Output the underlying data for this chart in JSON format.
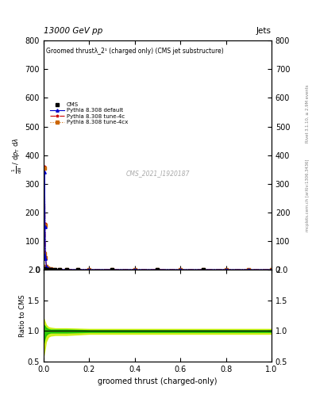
{
  "title_top": "13000 GeV pp",
  "title_right": "Jets",
  "plot_title": "Groomed thrustλ_2¹ (charged only) (CMS jet substructure)",
  "xlabel": "groomed thrust (charged-only)",
  "ylabel_lines": [
    "mathrm d²N",
    "mathrm d p₁ mathrm d λ"
  ],
  "ylabel_ratio": "Ratio to CMS",
  "watermark": "CMS_2021_I1920187",
  "right_label_top": "Rivet 3.1.10, ≥ 2.9M events",
  "right_label_bottom": "mcplots.cern.ch [arXiv:1306.3436]",
  "xlim": [
    0,
    1
  ],
  "ylim_main": [
    0,
    800
  ],
  "ylim_ratio": [
    0.5,
    2.0
  ],
  "yticks_main": [
    0,
    100,
    200,
    300,
    400,
    500,
    600,
    700,
    800
  ],
  "yticks_ratio": [
    0.5,
    1.0,
    1.5,
    2.0
  ],
  "legend_entries": [
    "CMS",
    "Pythia 8.308 default",
    "Pythia 8.308 tune-4c",
    "Pythia 8.308 tune-4cx"
  ],
  "cms_color": "black",
  "line1_color": "#0000cc",
  "line2_color": "#cc0000",
  "line3_color": "#cc6600",
  "background_color": "#ffffff",
  "ratio_band1_color": "#00bb00",
  "ratio_band2_color": "#ccee00",
  "pythia_x": [
    0.0,
    0.002,
    0.004,
    0.006,
    0.008,
    0.012,
    0.016,
    0.02,
    0.03,
    0.05,
    0.07,
    0.1,
    0.15,
    0.2,
    0.3,
    0.4,
    0.5,
    0.6,
    0.7,
    0.8,
    0.9,
    1.0
  ],
  "p1_y": [
    0,
    50,
    340,
    150,
    40,
    12,
    5,
    3,
    2,
    1,
    0.5,
    0.3,
    0.2,
    0.15,
    0.1,
    0.08,
    0.05,
    0.03,
    0.03,
    0.02,
    0.01,
    0.0
  ],
  "p2_y": [
    0,
    60,
    360,
    160,
    45,
    13,
    6,
    3,
    2,
    1,
    0.5,
    0.3,
    0.2,
    0.15,
    0.1,
    0.08,
    0.05,
    0.03,
    0.03,
    0.02,
    0.01,
    0.0
  ],
  "p3_y": [
    0,
    55,
    355,
    155,
    42,
    12,
    5,
    3,
    2,
    1,
    0.5,
    0.3,
    0.2,
    0.15,
    0.1,
    0.08,
    0.05,
    0.03,
    0.03,
    0.02,
    0.01,
    0.0
  ],
  "cms_x": [
    0.004,
    0.012,
    0.02,
    0.03,
    0.05,
    0.07,
    0.1,
    0.15,
    0.3,
    0.5,
    0.7
  ],
  "cms_y": [
    2.0,
    1.5,
    1.0,
    0.8,
    0.5,
    0.3,
    0.2,
    0.1,
    0.1,
    0.05,
    0.03
  ],
  "ratio_x": [
    0.0,
    0.005,
    0.01,
    0.02,
    0.03,
    0.05,
    0.1,
    0.2,
    0.3,
    0.5,
    0.7,
    1.0
  ],
  "band_green_up": [
    1.1,
    1.08,
    1.05,
    1.03,
    1.02,
    1.02,
    1.02,
    1.01,
    1.01,
    1.01,
    1.01,
    1.01
  ],
  "band_green_dn": [
    0.8,
    0.88,
    0.93,
    0.96,
    0.97,
    0.97,
    0.97,
    0.98,
    0.98,
    0.98,
    0.98,
    0.98
  ],
  "band_yellow_up": [
    1.2,
    1.15,
    1.1,
    1.06,
    1.05,
    1.04,
    1.04,
    1.03,
    1.03,
    1.03,
    1.03,
    1.03
  ],
  "band_yellow_dn": [
    0.6,
    0.7,
    0.82,
    0.9,
    0.92,
    0.93,
    0.93,
    0.95,
    0.95,
    0.95,
    0.95,
    0.95
  ]
}
